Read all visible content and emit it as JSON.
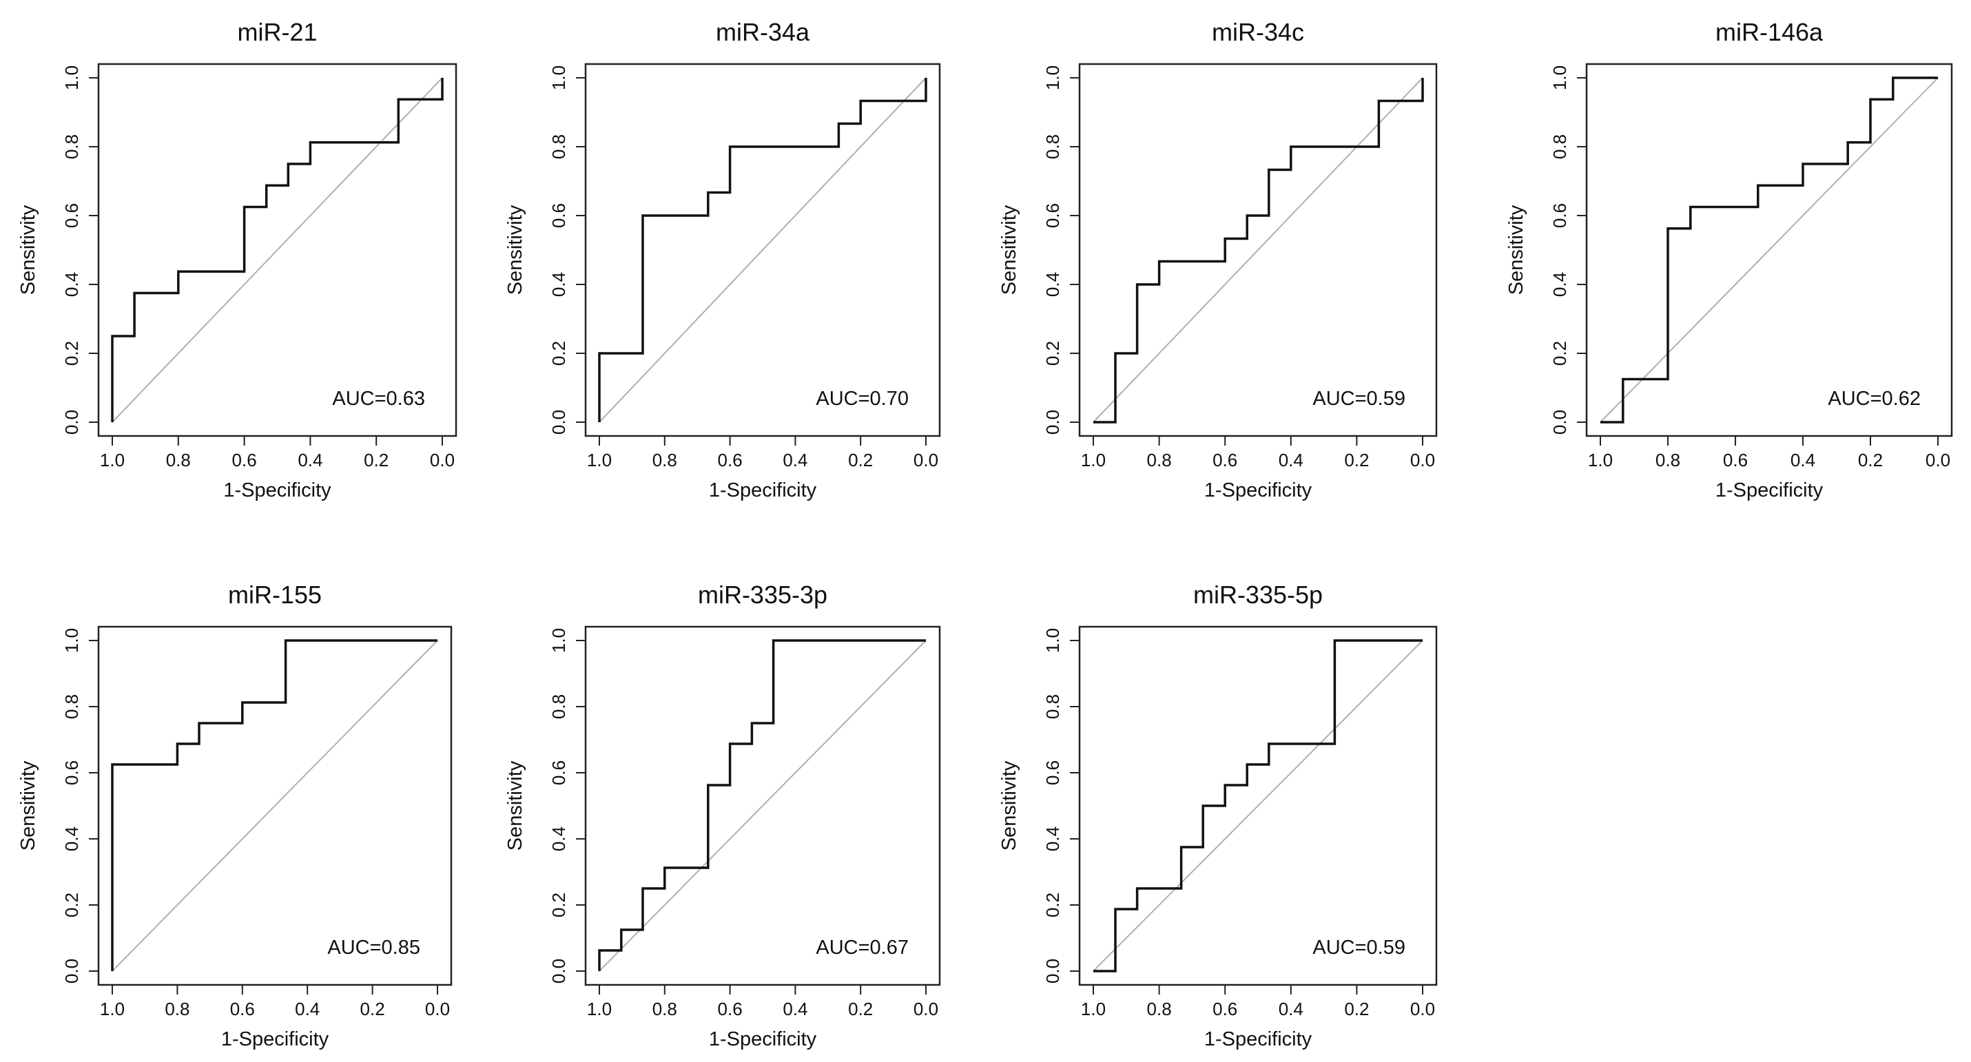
{
  "figure": {
    "description_title": "ROC curves for seven miRNAs"
  },
  "colors": {
    "curve": "#111111",
    "diagonal": "#b0b0b0",
    "frame": "#222222",
    "text": "#111111"
  },
  "chart_data": [
    {
      "type": "line",
      "title": "miR-21",
      "xlabel": "1-Specificity",
      "ylabel": "Sensitivity",
      "auc_label": "AUC=0.63",
      "xlim": [
        1.0,
        0.0
      ],
      "ylim": [
        0.0,
        1.0
      ],
      "xticks": [
        "1.0",
        "0.8",
        "0.6",
        "0.4",
        "0.2",
        "0.0"
      ],
      "yticks": [
        "0.0",
        "0.2",
        "0.4",
        "0.6",
        "0.8",
        "1.0"
      ],
      "roc": {
        "specificity_complement": [
          1.0,
          1.0,
          0.933,
          0.933,
          0.8,
          0.8,
          0.6,
          0.6,
          0.533,
          0.533,
          0.467,
          0.467,
          0.4,
          0.4,
          0.133,
          0.133,
          0.0,
          0.0
        ],
        "sensitivity": [
          0.0,
          0.25,
          0.25,
          0.375,
          0.375,
          0.4375,
          0.4375,
          0.625,
          0.625,
          0.6875,
          0.6875,
          0.75,
          0.75,
          0.8125,
          0.8125,
          0.9375,
          0.9375,
          1.0
        ]
      }
    },
    {
      "type": "line",
      "title": "miR-34a",
      "xlabel": "1-Specificity",
      "ylabel": "Sensitivity",
      "auc_label": "AUC=0.70",
      "xlim": [
        1.0,
        0.0
      ],
      "ylim": [
        0.0,
        1.0
      ],
      "xticks": [
        "1.0",
        "0.8",
        "0.6",
        "0.4",
        "0.2",
        "0.0"
      ],
      "yticks": [
        "0.0",
        "0.2",
        "0.4",
        "0.6",
        "0.8",
        "1.0"
      ],
      "roc": {
        "specificity_complement": [
          1.0,
          1.0,
          0.867,
          0.867,
          0.667,
          0.667,
          0.6,
          0.6,
          0.267,
          0.267,
          0.2,
          0.2,
          0.0,
          0.0
        ],
        "sensitivity": [
          0.0,
          0.2,
          0.2,
          0.6,
          0.6,
          0.667,
          0.667,
          0.8,
          0.8,
          0.867,
          0.867,
          0.933,
          0.933,
          1.0
        ]
      }
    },
    {
      "type": "line",
      "title": "miR-34c",
      "xlabel": "1-Specificity",
      "ylabel": "Sensitivity",
      "auc_label": "AUC=0.59",
      "xlim": [
        1.0,
        0.0
      ],
      "ylim": [
        0.0,
        1.0
      ],
      "xticks": [
        "1.0",
        "0.8",
        "0.6",
        "0.4",
        "0.2",
        "0.0"
      ],
      "yticks": [
        "0.0",
        "0.2",
        "0.4",
        "0.6",
        "0.8",
        "1.0"
      ],
      "roc": {
        "specificity_complement": [
          1.0,
          0.933,
          0.933,
          0.867,
          0.867,
          0.8,
          0.8,
          0.6,
          0.6,
          0.533,
          0.533,
          0.467,
          0.467,
          0.4,
          0.4,
          0.133,
          0.133,
          0.0,
          0.0
        ],
        "sensitivity": [
          0.0,
          0.0,
          0.2,
          0.2,
          0.4,
          0.4,
          0.467,
          0.467,
          0.533,
          0.533,
          0.6,
          0.6,
          0.733,
          0.733,
          0.8,
          0.8,
          0.933,
          0.933,
          1.0
        ]
      }
    },
    {
      "type": "line",
      "title": "miR-146a",
      "xlabel": "1-Specificity",
      "ylabel": "Sensitivity",
      "auc_label": "AUC=0.62",
      "xlim": [
        1.0,
        0.0
      ],
      "ylim": [
        0.0,
        1.0
      ],
      "xticks": [
        "1.0",
        "0.8",
        "0.6",
        "0.4",
        "0.2",
        "0.0"
      ],
      "yticks": [
        "0.0",
        "0.2",
        "0.4",
        "0.6",
        "0.8",
        "1.0"
      ],
      "roc": {
        "specificity_complement": [
          1.0,
          0.933,
          0.933,
          0.8,
          0.8,
          0.733,
          0.733,
          0.533,
          0.533,
          0.4,
          0.4,
          0.267,
          0.267,
          0.2,
          0.2,
          0.133,
          0.133,
          0.0
        ],
        "sensitivity": [
          0.0,
          0.0,
          0.125,
          0.125,
          0.5625,
          0.5625,
          0.625,
          0.625,
          0.6875,
          0.6875,
          0.75,
          0.75,
          0.8125,
          0.8125,
          0.9375,
          0.9375,
          1.0,
          1.0
        ]
      }
    },
    {
      "type": "line",
      "title": "miR-155",
      "xlabel": "1-Specificity",
      "ylabel": "Sensitivity",
      "auc_label": "AUC=0.85",
      "xlim": [
        1.0,
        0.0
      ],
      "ylim": [
        0.0,
        1.0
      ],
      "xticks": [
        "1.0",
        "0.8",
        "0.6",
        "0.4",
        "0.2",
        "0.0"
      ],
      "yticks": [
        "0.0",
        "0.2",
        "0.4",
        "0.6",
        "0.8",
        "1.0"
      ],
      "roc": {
        "specificity_complement": [
          1.0,
          1.0,
          0.8,
          0.8,
          0.733,
          0.733,
          0.6,
          0.6,
          0.467,
          0.467,
          0.0
        ],
        "sensitivity": [
          0.0,
          0.625,
          0.625,
          0.6875,
          0.6875,
          0.75,
          0.75,
          0.8125,
          0.8125,
          1.0,
          1.0
        ]
      }
    },
    {
      "type": "line",
      "title": "miR-335-3p",
      "xlabel": "1-Specificity",
      "ylabel": "Sensitivity",
      "auc_label": "AUC=0.67",
      "xlim": [
        1.0,
        0.0
      ],
      "ylim": [
        0.0,
        1.0
      ],
      "xticks": [
        "1.0",
        "0.8",
        "0.6",
        "0.4",
        "0.2",
        "0.0"
      ],
      "yticks": [
        "0.0",
        "0.2",
        "0.4",
        "0.6",
        "0.8",
        "1.0"
      ],
      "roc": {
        "specificity_complement": [
          1.0,
          1.0,
          0.933,
          0.933,
          0.867,
          0.867,
          0.8,
          0.8,
          0.667,
          0.667,
          0.6,
          0.6,
          0.533,
          0.533,
          0.467,
          0.467,
          0.0
        ],
        "sensitivity": [
          0.0,
          0.0625,
          0.0625,
          0.125,
          0.125,
          0.25,
          0.25,
          0.3125,
          0.3125,
          0.5625,
          0.5625,
          0.6875,
          0.6875,
          0.75,
          0.75,
          1.0,
          1.0
        ]
      }
    },
    {
      "type": "line",
      "title": "miR-335-5p",
      "xlabel": "1-Specificity",
      "ylabel": "Sensitivity",
      "auc_label": "AUC=0.59",
      "xlim": [
        1.0,
        0.0
      ],
      "ylim": [
        0.0,
        1.0
      ],
      "xticks": [
        "1.0",
        "0.8",
        "0.6",
        "0.4",
        "0.2",
        "0.0"
      ],
      "yticks": [
        "0.0",
        "0.2",
        "0.4",
        "0.6",
        "0.8",
        "1.0"
      ],
      "roc": {
        "specificity_complement": [
          1.0,
          0.933,
          0.933,
          0.867,
          0.867,
          0.733,
          0.733,
          0.667,
          0.667,
          0.6,
          0.6,
          0.533,
          0.533,
          0.467,
          0.467,
          0.267,
          0.267,
          0.0
        ],
        "sensitivity": [
          0.0,
          0.0,
          0.1875,
          0.1875,
          0.25,
          0.25,
          0.375,
          0.375,
          0.5,
          0.5,
          0.5625,
          0.5625,
          0.625,
          0.625,
          0.6875,
          0.6875,
          1.0,
          1.0
        ]
      }
    }
  ]
}
